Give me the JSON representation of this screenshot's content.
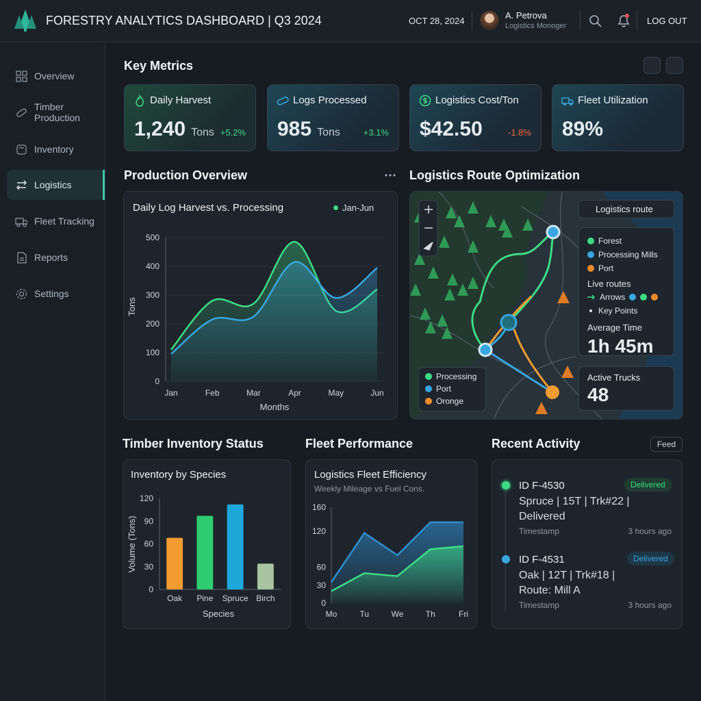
{
  "header": {
    "title": "FORESTRY ANALYTICS DASHBOARD | Q3 2024",
    "date": "OCT 28, 2024",
    "user_name": "A. Petrova",
    "user_role": "Logistics Monoger",
    "logout": "LOG OUT"
  },
  "sidebar": {
    "items": [
      "Overview",
      "Timber Production",
      "Inventory",
      "Logistics",
      "Fleet Tracking",
      "Reports",
      "Settings"
    ]
  },
  "sections": {
    "key_metrics": "Key Metrics",
    "production": "Production Overview",
    "routes": "Logistics Route Optimization",
    "inventory": "Timber Inventory Status",
    "fleet": "Fleet Performance",
    "activity": "Recent Activity"
  },
  "metrics": {
    "cards": [
      {
        "label": "Daily Harvest",
        "value": "1,240",
        "unit": "Tons",
        "change": "+5.2%",
        "change_color": "#3ddc84"
      },
      {
        "label": "Logs Processed",
        "value": "985",
        "unit": "Tons",
        "change": "+3.1%",
        "change_color": "#3ddc84"
      },
      {
        "label": "Logistics Cost/Ton",
        "value": "$42.50",
        "change": "-1.8%",
        "change_color": "#f06a3c"
      },
      {
        "label": "Fleet Utilization",
        "value": "89%"
      }
    ]
  },
  "chart_data": [
    {
      "type": "line",
      "title": "Daily Log Harvest vs. Processing",
      "period": "Jan-Jun",
      "categories": [
        "Jan",
        "Feb",
        "Mar",
        "Apr",
        "May",
        "Jun"
      ],
      "x_label": "Months",
      "y_label": "Tons",
      "ylim": [
        0,
        500
      ],
      "yticks": [
        0,
        100,
        200,
        300,
        400,
        500
      ],
      "grid": true,
      "series": [
        {
          "color": "#3ddc84",
          "values": [
            110,
            280,
            270,
            485,
            245,
            320
          ]
        },
        {
          "color": "#38a6e0",
          "values": [
            95,
            215,
            225,
            415,
            290,
            395
          ]
        }
      ]
    },
    {
      "type": "bar",
      "title": "Inventory by Species",
      "categories": [
        "Oak",
        "Pine",
        "Spruce",
        "Birch"
      ],
      "values": [
        68,
        97,
        112,
        34
      ],
      "colors": [
        "#f29b30",
        "#2ecc71",
        "#1ea7d9",
        "#a8c4a0"
      ],
      "x_label": "Species",
      "y_label": "Volume (Tons)",
      "ylim": [
        0,
        120
      ],
      "yticks": [
        0,
        30,
        60,
        90,
        120
      ],
      "grid": false
    },
    {
      "type": "area",
      "title": "Logistics Fleet Efficiency",
      "subtitle": "Weekly Mileage vs Fuel Cons.",
      "categories": [
        "Mo",
        "Tu",
        "We",
        "Th",
        "Fri"
      ],
      "ylim": [
        0,
        160
      ],
      "yticks": [
        0,
        30,
        60,
        120,
        160
      ],
      "grid": false,
      "series": [
        {
          "color": "#2f8fd0",
          "values": [
            35,
            117,
            80,
            135,
            135
          ]
        },
        {
          "color": "#3ddc84",
          "values": [
            20,
            50,
            45,
            90,
            95
          ]
        }
      ]
    }
  ],
  "route_map": {
    "dropdown": "Logistics route",
    "legend": [
      {
        "label": "Forest",
        "color": "#3ddc84"
      },
      {
        "label": "Processing Mills",
        "color": "#38a6e0"
      },
      {
        "label": "Port",
        "color": "#f28c28"
      }
    ],
    "live_routes": "Live routes",
    "arrows": "Arrows",
    "key_points": "Key Points",
    "avg_time_label": "Average Time",
    "avg_time": "1h 45m",
    "active_trucks_label": "Active Trucks",
    "active_trucks": "48",
    "bottom_legend": [
      {
        "label": "Processing",
        "color": "#3ddc84"
      },
      {
        "label": "Port",
        "color": "#38a6e0"
      },
      {
        "label": "Oronge",
        "color": "#f28c28"
      }
    ]
  },
  "activity": {
    "feed": "Feed",
    "items": [
      {
        "id": "ID F-4530",
        "status": "Delivered",
        "status_color": "#3ddc84",
        "dot": "#3ddc84",
        "lines": [
          "Spruce | 15T | Trk#22 |",
          "Delivered"
        ],
        "timestamp": "Timestamp",
        "time": "3 hours ago"
      },
      {
        "id": "ID F-4531",
        "status": "Delivered",
        "status_color": "#38a6e0",
        "dot": "#38a6e0",
        "lines": [
          "Oak | 12T | Trk#18 |",
          "Route: Mill A"
        ],
        "timestamp": "Timestamp",
        "time": "3 hours ago"
      }
    ]
  }
}
